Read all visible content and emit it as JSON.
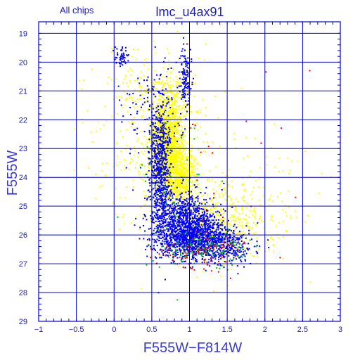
{
  "chart_data": {
    "type": "scatter",
    "title": "lmc_u4ax91",
    "subtitle": "All chips",
    "xlabel": "F555W−F814W",
    "ylabel": "F555W",
    "xlim": [
      -1,
      3
    ],
    "ylim": [
      29,
      18.6
    ],
    "y_inverted": true,
    "grid": true,
    "x_ticks": [
      -1,
      -0.5,
      0,
      0.5,
      1,
      1.5,
      2,
      2.5,
      3
    ],
    "x_tick_labels": [
      "−1",
      "−0.5",
      "0",
      "0.5",
      "1",
      "1.5",
      "2",
      "2.5",
      "3"
    ],
    "y_ticks": [
      19,
      20,
      21,
      22,
      23,
      24,
      25,
      26,
      27,
      28,
      29
    ],
    "y_tick_labels": [
      "19",
      "20",
      "21",
      "22",
      "23",
      "24",
      "25",
      "26",
      "27",
      "28",
      "29"
    ],
    "colors": {
      "axis": "#0000cc",
      "grid": "#0000cc",
      "background": "#ffffff"
    },
    "series": [
      {
        "color": "#ffff00",
        "clusters": [
          {
            "cx": 0.7,
            "cy": 22.8,
            "sx": 0.1,
            "sy": 0.7,
            "n": 1400
          },
          {
            "cx": 0.85,
            "cy": 23.9,
            "sx": 0.12,
            "sy": 0.5,
            "n": 700
          },
          {
            "cx": 0.8,
            "cy": 21.2,
            "sx": 0.14,
            "sy": 0.5,
            "n": 180
          },
          {
            "cx": 0.55,
            "cy": 23.0,
            "sx": 0.4,
            "sy": 1.5,
            "n": 350
          },
          {
            "cx": 1.4,
            "cy": 25.6,
            "sx": 0.35,
            "sy": 0.7,
            "n": 450
          },
          {
            "cx": 0.3,
            "cy": 20.8,
            "sx": 0.18,
            "sy": 0.5,
            "n": 60
          },
          {
            "cx": 1.9,
            "cy": 24.8,
            "sx": 0.4,
            "sy": 1.2,
            "n": 130
          }
        ]
      },
      {
        "color": "#0000ff",
        "clusters": [
          {
            "cx": 0.62,
            "cy": 23.6,
            "sx": 0.07,
            "sy": 1.2,
            "n": 700
          },
          {
            "cx": 0.95,
            "cy": 25.5,
            "sx": 0.22,
            "sy": 0.5,
            "n": 900
          },
          {
            "cx": 1.1,
            "cy": 26.2,
            "sx": 0.25,
            "sy": 0.35,
            "n": 900
          },
          {
            "cx": 0.95,
            "cy": 20.6,
            "sx": 0.04,
            "sy": 0.6,
            "n": 130
          },
          {
            "cx": 0.1,
            "cy": 19.8,
            "sx": 0.05,
            "sy": 0.15,
            "n": 50
          },
          {
            "cx": 0.45,
            "cy": 22.0,
            "sx": 0.18,
            "sy": 1.2,
            "n": 90
          },
          {
            "cx": 1.5,
            "cy": 26.4,
            "sx": 0.2,
            "sy": 0.3,
            "n": 200
          }
        ]
      },
      {
        "color": "#00cc00",
        "clusters": [
          {
            "cx": 1.2,
            "cy": 26.5,
            "sx": 0.3,
            "sy": 0.3,
            "n": 110
          },
          {
            "cx": 0.7,
            "cy": 24.5,
            "sx": 0.3,
            "sy": 1.5,
            "n": 45
          }
        ]
      },
      {
        "color": "#ff0000",
        "clusters": [
          {
            "cx": 1.2,
            "cy": 26.6,
            "sx": 0.35,
            "sy": 0.3,
            "n": 80
          },
          {
            "cx": 1.0,
            "cy": 23.5,
            "sx": 0.6,
            "sy": 2.0,
            "n": 25
          }
        ]
      }
    ]
  }
}
